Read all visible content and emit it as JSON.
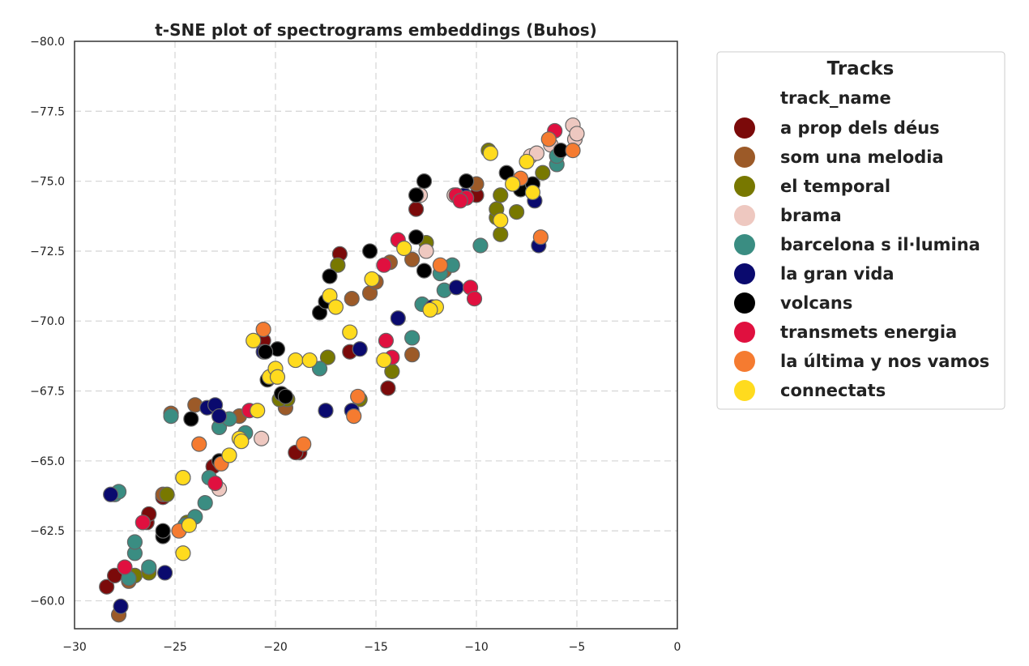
{
  "chart_data": {
    "type": "scatter",
    "title": "t-SNE plot of spectrograms embeddings (Buhos)",
    "xlabel": "",
    "ylabel": "",
    "xlim": [
      -30,
      0
    ],
    "ylim": [
      -59,
      -80
    ],
    "x_ticks": [
      -30,
      -25,
      -20,
      -15,
      -10,
      -5,
      0
    ],
    "y_ticks": [
      -80.0,
      -77.5,
      -75.0,
      -72.5,
      -70.0,
      -67.5,
      -65.0,
      -62.5,
      -60.0
    ],
    "x_tick_labels": [
      "−30",
      "−25",
      "−20",
      "−15",
      "−10",
      "−5",
      "0"
    ],
    "y_tick_labels": [
      "−80.0",
      "−77.5",
      "−75.0",
      "−72.5",
      "−70.0",
      "−67.5",
      "−65.0",
      "−62.5",
      "−60.0"
    ],
    "grid": true,
    "legend_placement": "outside-right",
    "legend": {
      "title": "Tracks",
      "subtitle": "track_name"
    },
    "marker_edge_color": "#666666",
    "series": [
      {
        "name": "a prop dels déus",
        "color": "#7B0A0A",
        "points": [
          [
            -28.4,
            -60.5
          ],
          [
            -28.0,
            -60.9
          ],
          [
            -26.4,
            -62.8
          ],
          [
            -25.6,
            -63.7
          ],
          [
            -23.1,
            -64.8
          ],
          [
            -18.8,
            -65.3
          ],
          [
            -20.6,
            -69.3
          ],
          [
            -16.8,
            -72.4
          ],
          [
            -16.3,
            -68.9
          ],
          [
            -14.4,
            -67.6
          ],
          [
            -13.0,
            -74.0
          ],
          [
            -10.0,
            -74.5
          ],
          [
            -19.0,
            -65.3
          ],
          [
            -26.3,
            -63.1
          ]
        ]
      },
      {
        "name": "som una melodia",
        "color": "#9C5A28",
        "points": [
          [
            -27.8,
            -59.5
          ],
          [
            -27.3,
            -60.7
          ],
          [
            -25.6,
            -63.8
          ],
          [
            -25.2,
            -66.7
          ],
          [
            -24.0,
            -67.0
          ],
          [
            -21.8,
            -66.6
          ],
          [
            -19.5,
            -66.9
          ],
          [
            -16.2,
            -70.8
          ],
          [
            -15.3,
            -71.0
          ],
          [
            -14.3,
            -72.1
          ],
          [
            -13.2,
            -72.2
          ],
          [
            -13.2,
            -68.8
          ],
          [
            -11.6,
            -71.8
          ],
          [
            -10.0,
            -74.9
          ],
          [
            -15.0,
            -71.4
          ],
          [
            -26.3,
            -61.1
          ]
        ]
      },
      {
        "name": "el temporal",
        "color": "#787800",
        "points": [
          [
            -27.0,
            -60.9
          ],
          [
            -25.4,
            -63.8
          ],
          [
            -24.6,
            -64.4
          ],
          [
            -24.4,
            -62.8
          ],
          [
            -19.4,
            -67.2
          ],
          [
            -17.4,
            -68.7
          ],
          [
            -16.9,
            -72.0
          ],
          [
            -15.8,
            -67.2
          ],
          [
            -14.2,
            -68.2
          ],
          [
            -12.5,
            -72.8
          ],
          [
            -9.4,
            -76.1
          ],
          [
            -9.0,
            -73.7
          ],
          [
            -8.8,
            -73.1
          ],
          [
            -8.8,
            -74.5
          ],
          [
            -8.0,
            -73.9
          ],
          [
            -6.7,
            -75.3
          ],
          [
            -9.0,
            -74.0
          ],
          [
            -19.8,
            -67.2
          ],
          [
            -26.3,
            -61.0
          ]
        ]
      },
      {
        "name": "brama",
        "color": "#EEC8C0",
        "points": [
          [
            -22.8,
            -64.0
          ],
          [
            -20.7,
            -65.8
          ],
          [
            -12.8,
            -74.5
          ],
          [
            -12.5,
            -72.5
          ],
          [
            -11.1,
            -74.5
          ],
          [
            -7.3,
            -75.9
          ],
          [
            -6.3,
            -76.3
          ],
          [
            -5.2,
            -77.0
          ],
          [
            -5.1,
            -76.5
          ],
          [
            -5.0,
            -76.7
          ],
          [
            -7.0,
            -76.0
          ]
        ]
      },
      {
        "name": "barcelona s il·lumina",
        "color": "#3A8D82",
        "points": [
          [
            -28.0,
            -63.8
          ],
          [
            -27.8,
            -63.9
          ],
          [
            -27.3,
            -60.8
          ],
          [
            -27.0,
            -61.7
          ],
          [
            -27.0,
            -62.1
          ],
          [
            -26.3,
            -61.2
          ],
          [
            -24.5,
            -62.7
          ],
          [
            -24.0,
            -63.0
          ],
          [
            -23.5,
            -63.5
          ],
          [
            -23.3,
            -64.4
          ],
          [
            -22.8,
            -66.2
          ],
          [
            -22.3,
            -66.5
          ],
          [
            -21.5,
            -66.0
          ],
          [
            -25.2,
            -66.6
          ],
          [
            -17.8,
            -68.3
          ],
          [
            -13.2,
            -69.4
          ],
          [
            -12.7,
            -70.6
          ],
          [
            -11.8,
            -71.7
          ],
          [
            -11.2,
            -72.0
          ],
          [
            -9.8,
            -72.7
          ],
          [
            -6.0,
            -75.6
          ],
          [
            -6.0,
            -75.9
          ],
          [
            -11.6,
            -71.1
          ]
        ]
      },
      {
        "name": "la gran vida",
        "color": "#0A0A6E",
        "points": [
          [
            -28.2,
            -63.8
          ],
          [
            -27.7,
            -59.8
          ],
          [
            -25.5,
            -61.0
          ],
          [
            -23.4,
            -66.9
          ],
          [
            -23.0,
            -67.0
          ],
          [
            -22.8,
            -66.6
          ],
          [
            -20.6,
            -68.9
          ],
          [
            -17.5,
            -66.8
          ],
          [
            -16.2,
            -66.8
          ],
          [
            -15.8,
            -69.0
          ],
          [
            -13.9,
            -70.1
          ],
          [
            -12.2,
            -70.5
          ],
          [
            -11.0,
            -71.2
          ],
          [
            -10.6,
            -74.5
          ],
          [
            -7.1,
            -74.3
          ],
          [
            -6.9,
            -72.7
          ]
        ]
      },
      {
        "name": "volcans",
        "color": "#000000",
        "points": [
          [
            -25.6,
            -62.3
          ],
          [
            -25.6,
            -62.5
          ],
          [
            -24.2,
            -66.5
          ],
          [
            -22.8,
            -65.0
          ],
          [
            -19.7,
            -67.4
          ],
          [
            -20.4,
            -67.9
          ],
          [
            -19.9,
            -69.0
          ],
          [
            -17.8,
            -70.3
          ],
          [
            -17.5,
            -70.7
          ],
          [
            -17.3,
            -71.6
          ],
          [
            -15.3,
            -72.5
          ],
          [
            -13.0,
            -73.0
          ],
          [
            -12.6,
            -71.8
          ],
          [
            -12.6,
            -75.0
          ],
          [
            -13.0,
            -74.5
          ],
          [
            -10.5,
            -75.0
          ],
          [
            -8.5,
            -75.3
          ],
          [
            -7.8,
            -74.7
          ],
          [
            -7.2,
            -74.9
          ],
          [
            -5.8,
            -76.1
          ],
          [
            -20.5,
            -68.9
          ],
          [
            -19.5,
            -67.3
          ]
        ]
      },
      {
        "name": "transmets energia",
        "color": "#E0103F",
        "points": [
          [
            -27.5,
            -61.2
          ],
          [
            -26.6,
            -62.8
          ],
          [
            -23.0,
            -64.2
          ],
          [
            -21.3,
            -66.8
          ],
          [
            -14.5,
            -69.3
          ],
          [
            -14.2,
            -68.7
          ],
          [
            -13.9,
            -72.9
          ],
          [
            -14.6,
            -72.0
          ],
          [
            -11.0,
            -74.5
          ],
          [
            -10.5,
            -74.4
          ],
          [
            -10.3,
            -71.2
          ],
          [
            -10.1,
            -70.8
          ],
          [
            -6.1,
            -76.8
          ],
          [
            -10.8,
            -74.3
          ]
        ]
      },
      {
        "name": "la última y nos vamos",
        "color": "#F57B30",
        "points": [
          [
            -24.8,
            -62.5
          ],
          [
            -23.8,
            -65.6
          ],
          [
            -22.7,
            -64.9
          ],
          [
            -20.6,
            -69.7
          ],
          [
            -18.6,
            -65.6
          ],
          [
            -16.1,
            -66.6
          ],
          [
            -15.9,
            -67.3
          ],
          [
            -11.8,
            -72.0
          ],
          [
            -7.8,
            -75.1
          ],
          [
            -6.8,
            -73.0
          ],
          [
            -6.4,
            -76.5
          ],
          [
            -5.2,
            -76.1
          ]
        ]
      },
      {
        "name": "connectats",
        "color": "#FFDB1E",
        "points": [
          [
            -24.6,
            -61.7
          ],
          [
            -24.6,
            -64.4
          ],
          [
            -24.3,
            -62.7
          ],
          [
            -22.3,
            -65.2
          ],
          [
            -21.8,
            -65.8
          ],
          [
            -21.1,
            -69.3
          ],
          [
            -20.9,
            -66.8
          ],
          [
            -20.3,
            -68.0
          ],
          [
            -20.0,
            -68.3
          ],
          [
            -19.9,
            -68.0
          ],
          [
            -19.0,
            -68.6
          ],
          [
            -18.3,
            -68.6
          ],
          [
            -17.3,
            -70.9
          ],
          [
            -17.0,
            -70.5
          ],
          [
            -16.3,
            -69.6
          ],
          [
            -15.2,
            -71.5
          ],
          [
            -14.6,
            -68.6
          ],
          [
            -13.6,
            -72.6
          ],
          [
            -12.0,
            -70.5
          ],
          [
            -12.3,
            -70.4
          ],
          [
            -9.3,
            -76.0
          ],
          [
            -8.8,
            -73.6
          ],
          [
            -8.2,
            -74.9
          ],
          [
            -7.5,
            -75.7
          ],
          [
            -7.2,
            -74.6
          ],
          [
            -21.7,
            -65.7
          ]
        ]
      }
    ]
  }
}
